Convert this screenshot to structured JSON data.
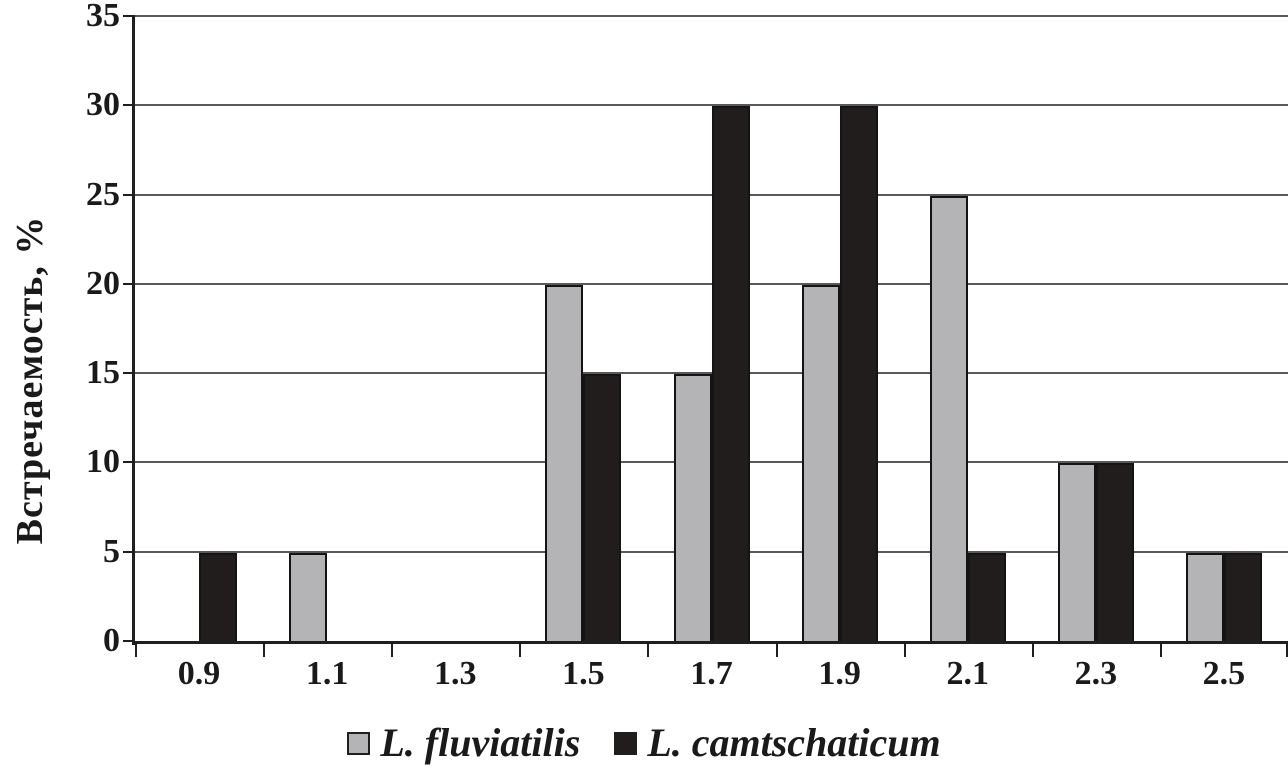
{
  "chart_data": {
    "type": "bar",
    "title": "",
    "categories": [
      "0.9",
      "1.1",
      "1.3",
      "1.5",
      "1.7",
      "1.9",
      "2.1",
      "2.3",
      "2.5"
    ],
    "series": [
      {
        "name": "L. fluviatilis",
        "color": "#b4b4b6",
        "values": [
          0,
          5,
          0,
          20,
          15,
          20,
          25,
          10,
          5
        ]
      },
      {
        "name": "L. camtschaticum",
        "color": "#211d1d",
        "values": [
          5,
          0,
          0,
          15,
          30,
          30,
          5,
          10,
          5
        ]
      }
    ],
    "xlabel": "",
    "ylabel": "Встречаемость, %",
    "ylim": [
      0,
      35
    ],
    "ytick_step": 5,
    "ytick_labels": [
      "0",
      "5",
      "10",
      "15",
      "20",
      "25",
      "30",
      "35"
    ],
    "grid": true,
    "legend_position": "bottom"
  },
  "colors": {
    "background": "#ffffff",
    "gridline": "#595959",
    "axis": "#1f1f1f",
    "bar_border": "#141414",
    "text": "#1a1a1a"
  }
}
